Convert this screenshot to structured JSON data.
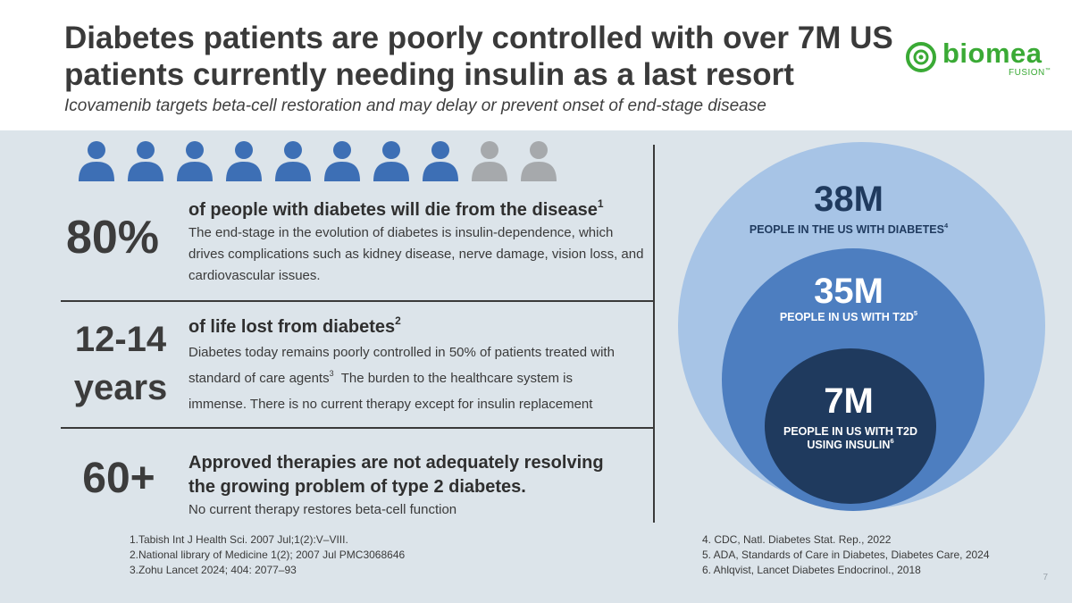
{
  "header": {
    "title": "Diabetes patients are poorly controlled with over 7M US patients currently needing insulin as a last resort",
    "subtitle": "Icovamenib targets beta-cell restoration and may delay or prevent onset of end-stage disease"
  },
  "logo": {
    "word": "biomea",
    "sub": "FUSION",
    "sub_mark": "™",
    "color": "#3aaa35"
  },
  "people_icons": {
    "total": 10,
    "highlighted": 8,
    "highlight_color": "#3d6fb5",
    "muted_color": "#a6a9ac"
  },
  "stats": [
    {
      "number": "80%",
      "headline": "of people with diabetes will die from the disease",
      "headline_ref": "1",
      "body": "The end-stage in the evolution of diabetes is insulin-dependence, which drives complications such as kidney disease, nerve damage, vision loss, and cardiovascular issues."
    },
    {
      "number_line1": "12-14",
      "number_line2": "years",
      "headline": "of life lost from diabetes",
      "headline_ref": "2",
      "body_part1": "Diabetes today remains poorly controlled in 50% of patients treated with standard of care agents",
      "body_ref": "3",
      "body_part2": "  The burden to the healthcare system is immense. There is no current therapy except for insulin replacement"
    },
    {
      "number": "60+",
      "headline": "Approved therapies are not adequately resolving the growing problem of type 2 diabetes.",
      "body": "No current therapy restores beta-cell function"
    }
  ],
  "circles": [
    {
      "value": "38M",
      "label": "PEOPLE IN THE US WITH DIABETES",
      "ref": "4",
      "fill": "#a7c4e6",
      "text_color": "#1f3a5e"
    },
    {
      "value": "35M",
      "label": "PEOPLE IN US WITH T2D",
      "ref": "5",
      "fill": "#4d7ec0",
      "text_color": "#ffffff"
    },
    {
      "value": "7M",
      "label_line1": "PEOPLE IN US WITH T2D",
      "label_line2": "USING INSULIN",
      "ref": "6",
      "fill": "#1f3a5e",
      "text_color": "#ffffff"
    }
  ],
  "references_left": [
    "1.Tabish Int J Health Sci. 2007 Jul;1(2):V–VIII.",
    "2.National library of Medicine 1(2); 2007 Jul PMC3068646",
    "3.Zohu Lancet 2024; 404: 2077–93"
  ],
  "references_right": [
    "4. CDC, Natl. Diabetes Stat. Rep., 2022",
    "5. ADA, Standards of Care in Diabetes, Diabetes Care, 2024",
    "6. Ahlqvist, Lancet Diabetes Endocrinol., 2018"
  ],
  "page_number": "7"
}
